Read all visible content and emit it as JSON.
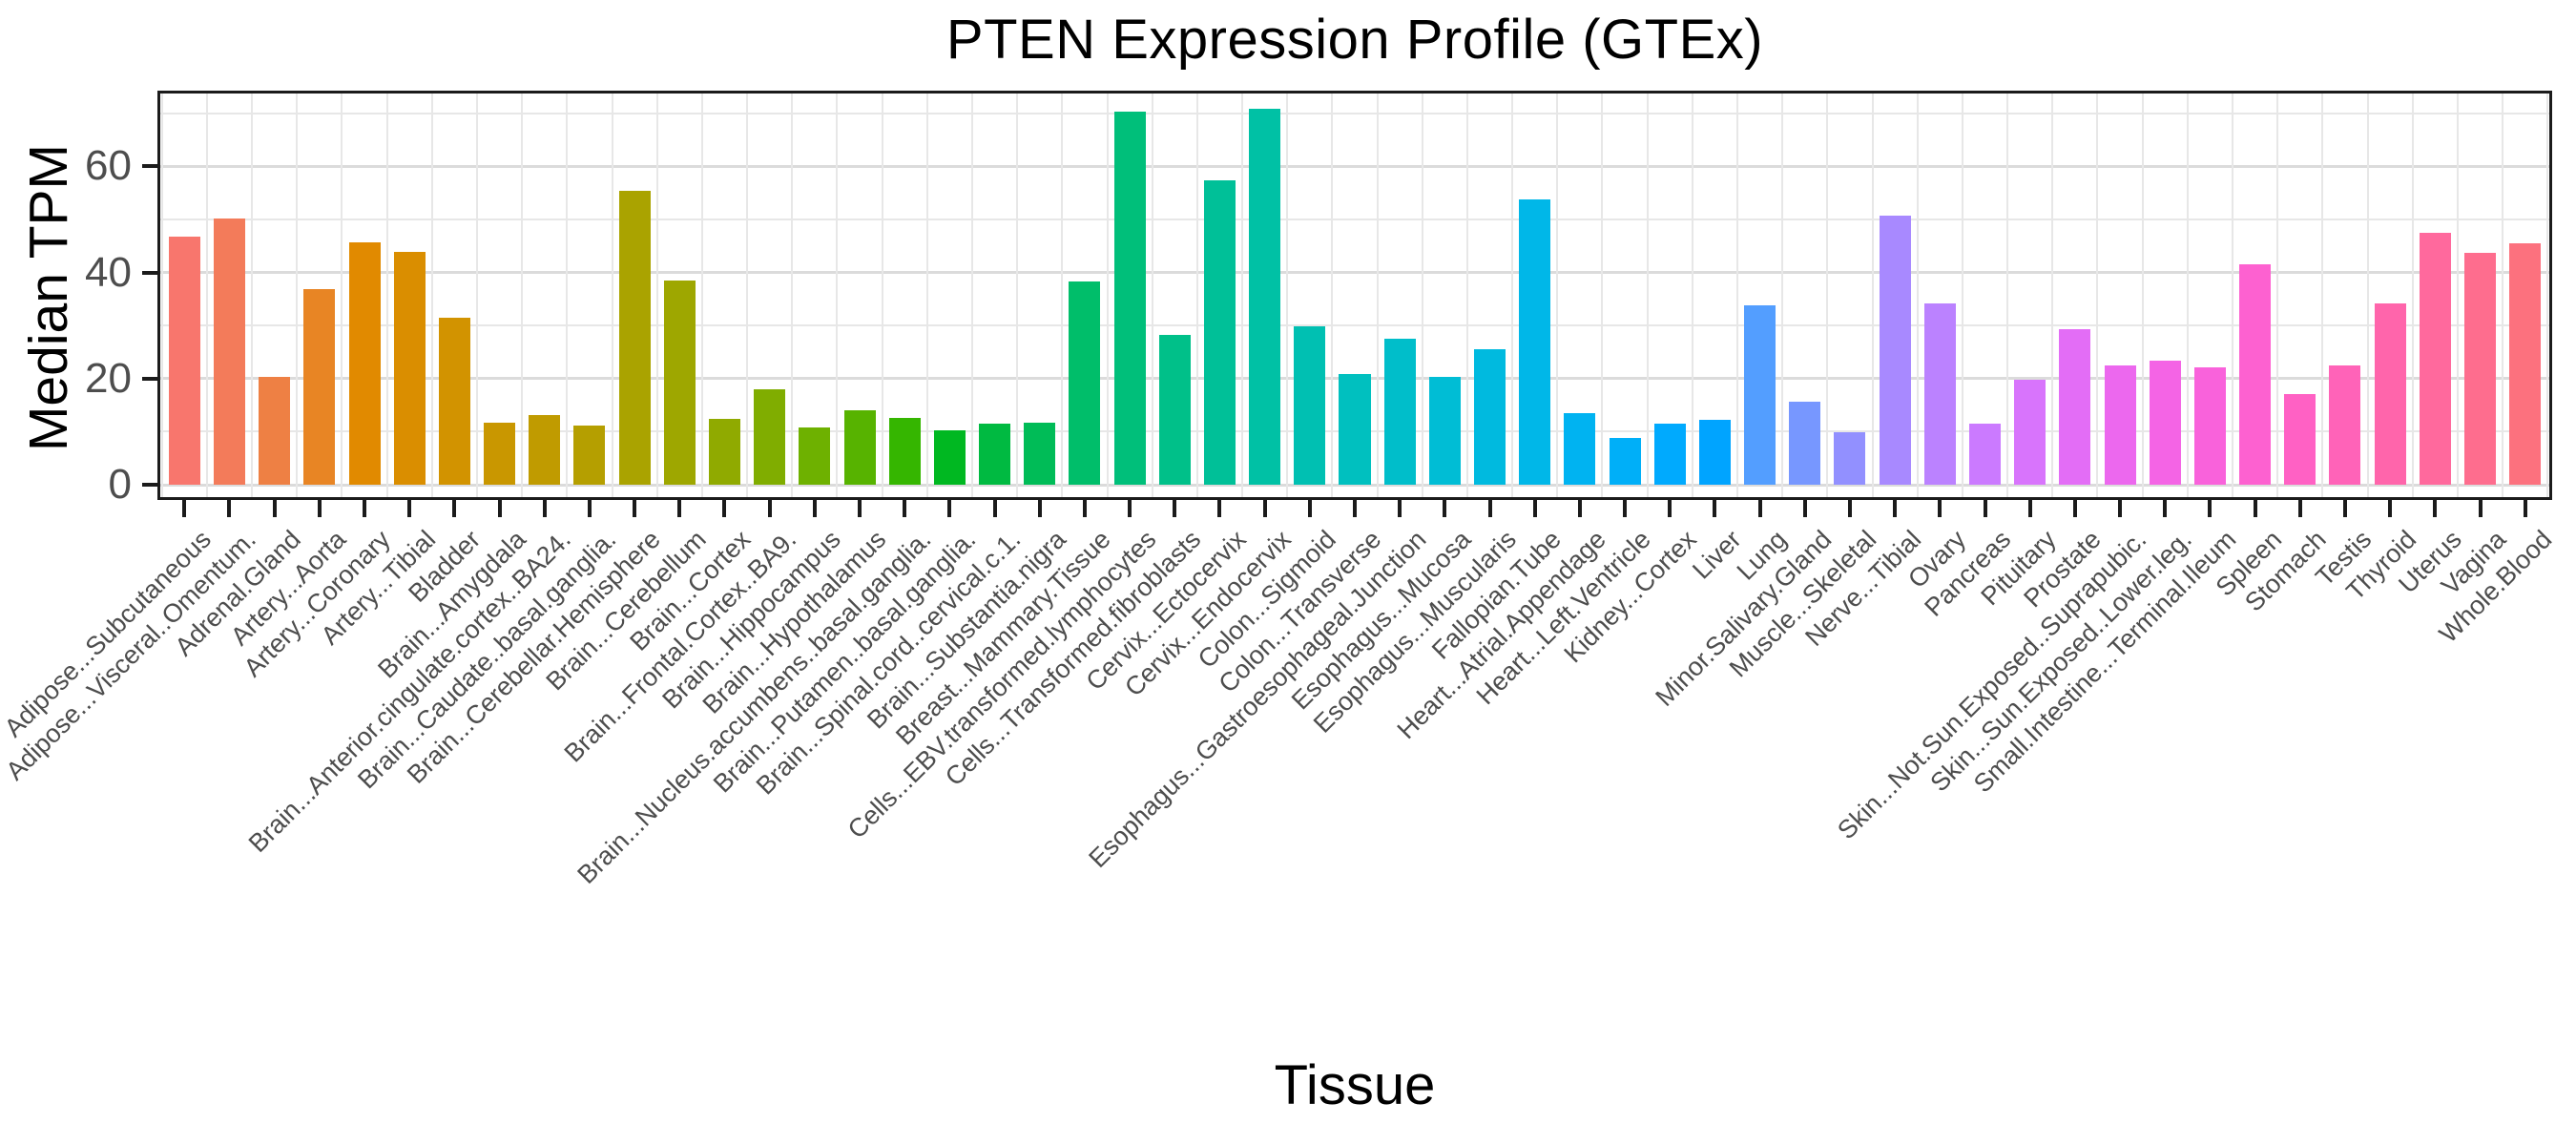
{
  "chart_data": {
    "type": "bar",
    "title": "PTEN Expression Profile (GTEx)",
    "xlabel": "Tissue",
    "ylabel": "Median TPM",
    "ylim": [
      0,
      74.3
    ],
    "yticks": [
      0,
      20,
      40,
      60
    ],
    "grid": "major+minor horizontal every 10, vertical at category boundaries",
    "legend": "none",
    "bar_width_fraction": 0.7,
    "palette": {
      "type": "ggplot-hue",
      "hue_start": 15,
      "hue_end": 375,
      "chroma": 100,
      "luminance": 65
    },
    "categories": [
      "Adipose...Subcutaneous",
      "Adipose...Visceral..Omentum.",
      "Adrenal.Gland",
      "Artery...Aorta",
      "Artery...Coronary",
      "Artery...Tibial",
      "Bladder",
      "Brain...Amygdala",
      "Brain...Anterior.cingulate.cortex..BA24.",
      "Brain...Caudate..basal.ganglia.",
      "Brain...Cerebellar.Hemisphere",
      "Brain...Cerebellum",
      "Brain...Cortex",
      "Brain...Frontal.Cortex..BA9.",
      "Brain...Hippocampus",
      "Brain...Hypothalamus",
      "Brain...Nucleus.accumbens..basal.ganglia.",
      "Brain...Putamen..basal.ganglia.",
      "Brain...Spinal.cord..cervical.c.1.",
      "Brain...Substantia.nigra",
      "Breast...Mammary.Tissue",
      "Cells...EBV.transformed.lymphocytes",
      "Cells...Transformed.fibroblasts",
      "Cervix...Ectocervix",
      "Cervix...Endocervix",
      "Colon...Sigmoid",
      "Colon...Transverse",
      "Esophagus...Gastroesophageal.Junction",
      "Esophagus...Mucosa",
      "Esophagus...Muscularis",
      "Fallopian.Tube",
      "Heart...Atrial.Appendage",
      "Heart...Left.Ventricle",
      "Kidney...Cortex",
      "Liver",
      "Lung",
      "Minor.Salivary.Gland",
      "Muscle...Skeletal",
      "Nerve...Tibial",
      "Ovary",
      "Pancreas",
      "Pituitary",
      "Prostate",
      "Skin...Not.Sun.Exposed..Suprapubic.",
      "Skin...Sun.Exposed..Lower.leg.",
      "Small.Intestine...Terminal.Ileum",
      "Spleen",
      "Stomach",
      "Testis",
      "Thyroid",
      "Uterus",
      "Vagina",
      "Whole.Blood"
    ],
    "values": [
      46.8,
      50.1,
      20.4,
      36.8,
      45.6,
      43.8,
      31.4,
      11.7,
      13.2,
      11.1,
      55.4,
      38.4,
      12.4,
      18.0,
      10.8,
      14.1,
      12.6,
      10.2,
      11.5,
      11.7,
      38.3,
      70.4,
      28.3,
      57.4,
      70.9,
      29.8,
      20.9,
      27.6,
      20.3,
      25.5,
      53.8,
      13.5,
      8.9,
      11.6,
      12.3,
      33.9,
      15.6,
      9.9,
      50.7,
      34.1,
      11.6,
      19.8,
      29.3,
      22.4,
      23.3,
      22.2,
      41.6,
      17.0,
      22.5,
      34.2,
      47.5,
      43.7,
      45.5
    ]
  },
  "colors": {
    "title": "#000000",
    "axis_title": "#000000",
    "axis_text": "#4d4d4d",
    "tick_mark": "#1b1b1b",
    "panel_border": "#1b1b1b",
    "grid_major": "#dbdbdb",
    "grid_minor": "#e7e7e7",
    "background": "#ffffff",
    "bar_color_first": "#f8766d",
    "bar_color_last": "#ff6c91"
  }
}
